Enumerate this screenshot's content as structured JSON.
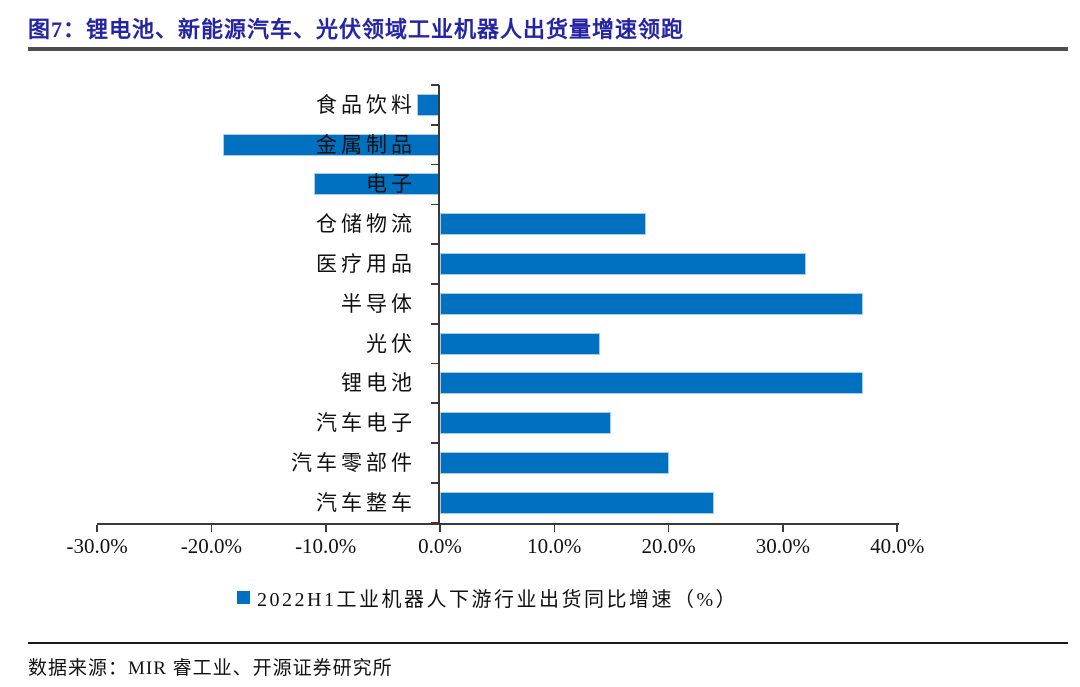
{
  "title": {
    "text": "图7：锂电池、新能源汽车、光伏领域工业机器人出货量增速领跑"
  },
  "source": {
    "text": "数据来源：MIR 睿工业、开源证券研究所"
  },
  "colors": {
    "bar": "#0070C0",
    "bar_border": "#A9CCE9",
    "title": "#2424A5",
    "title_rule": "#4d4d4d",
    "axis": "#3a3a3a",
    "text": "#111111"
  },
  "legend": {
    "marker": "blue-square",
    "label": "2022H1工业机器人下游行业出货同比增速（%）"
  },
  "chart_data": {
    "type": "bar",
    "orientation": "horizontal",
    "title": "",
    "xlabel": "",
    "ylabel": "",
    "categories": [
      "食品饮料",
      "金属制品",
      "电子",
      "仓储物流",
      "医疗用品",
      "半导体",
      "光伏",
      "锂电池",
      "汽车电子",
      "汽车零部件",
      "汽车整车"
    ],
    "series": [
      {
        "name": "2022H1工业机器人下游行业出货同比增速（%）",
        "values": [
          -2,
          -19,
          -11,
          18,
          32,
          37,
          14,
          37,
          15,
          20,
          24
        ]
      }
    ],
    "value_unit": "%",
    "xlim": [
      -30,
      40
    ],
    "xticks": [
      "-30.0%",
      "-20.0%",
      "-10.0%",
      "0.0%",
      "10.0%",
      "20.0%",
      "30.0%",
      "40.0%"
    ],
    "xtick_values": [
      -30,
      -20,
      -10,
      0,
      10,
      20,
      30,
      40
    ],
    "grid": false,
    "legend_position": "bottom"
  }
}
